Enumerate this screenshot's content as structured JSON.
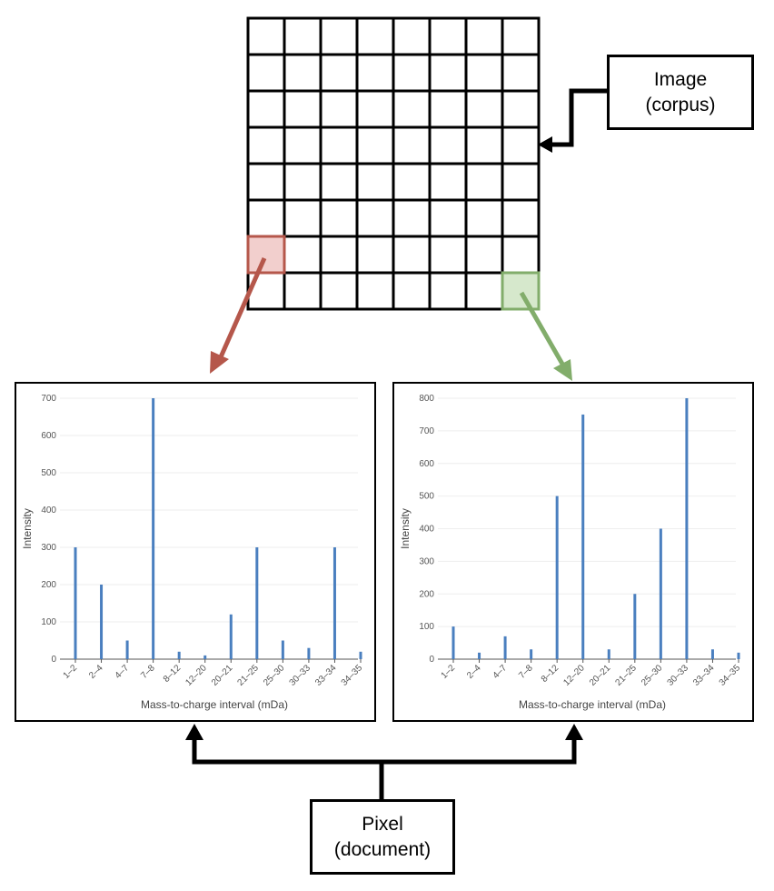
{
  "image_label": {
    "line1": "Image",
    "line2": "(corpus)"
  },
  "pixel_label": {
    "line1": "Pixel",
    "line2": "(document)"
  },
  "colors": {
    "red_highlight": "#b5574b",
    "green_highlight": "#82ad6b",
    "bar": "#4a7fbf"
  },
  "chart_data": [
    {
      "type": "bar",
      "categories": [
        "1–2",
        "2–4",
        "4–7",
        "7–8",
        "8–12",
        "12–20",
        "20–21",
        "21–25",
        "25–30",
        "30–33",
        "33–34",
        "34–35"
      ],
      "values": [
        300,
        200,
        50,
        700,
        20,
        10,
        120,
        300,
        50,
        30,
        300,
        20
      ],
      "xlabel": "Mass-to-charge interval (mDa)",
      "ylabel": "Intensity",
      "ylim": [
        0,
        700
      ],
      "yticks": [
        0,
        100,
        200,
        300,
        400,
        500,
        600,
        700
      ],
      "grid": true
    },
    {
      "type": "bar",
      "categories": [
        "1–2",
        "2–4",
        "4–7",
        "7–8",
        "8–12",
        "12–20",
        "20–21",
        "21–25",
        "25–30",
        "30–33",
        "33–34",
        "34–35"
      ],
      "values": [
        100,
        20,
        70,
        30,
        500,
        750,
        30,
        200,
        400,
        800,
        30,
        20
      ],
      "xlabel": "Mass-to-charge interval (mDa)",
      "ylabel": "Intensity",
      "ylim": [
        0,
        800
      ],
      "yticks": [
        0,
        100,
        200,
        300,
        400,
        500,
        600,
        700,
        800
      ],
      "grid": true
    }
  ]
}
